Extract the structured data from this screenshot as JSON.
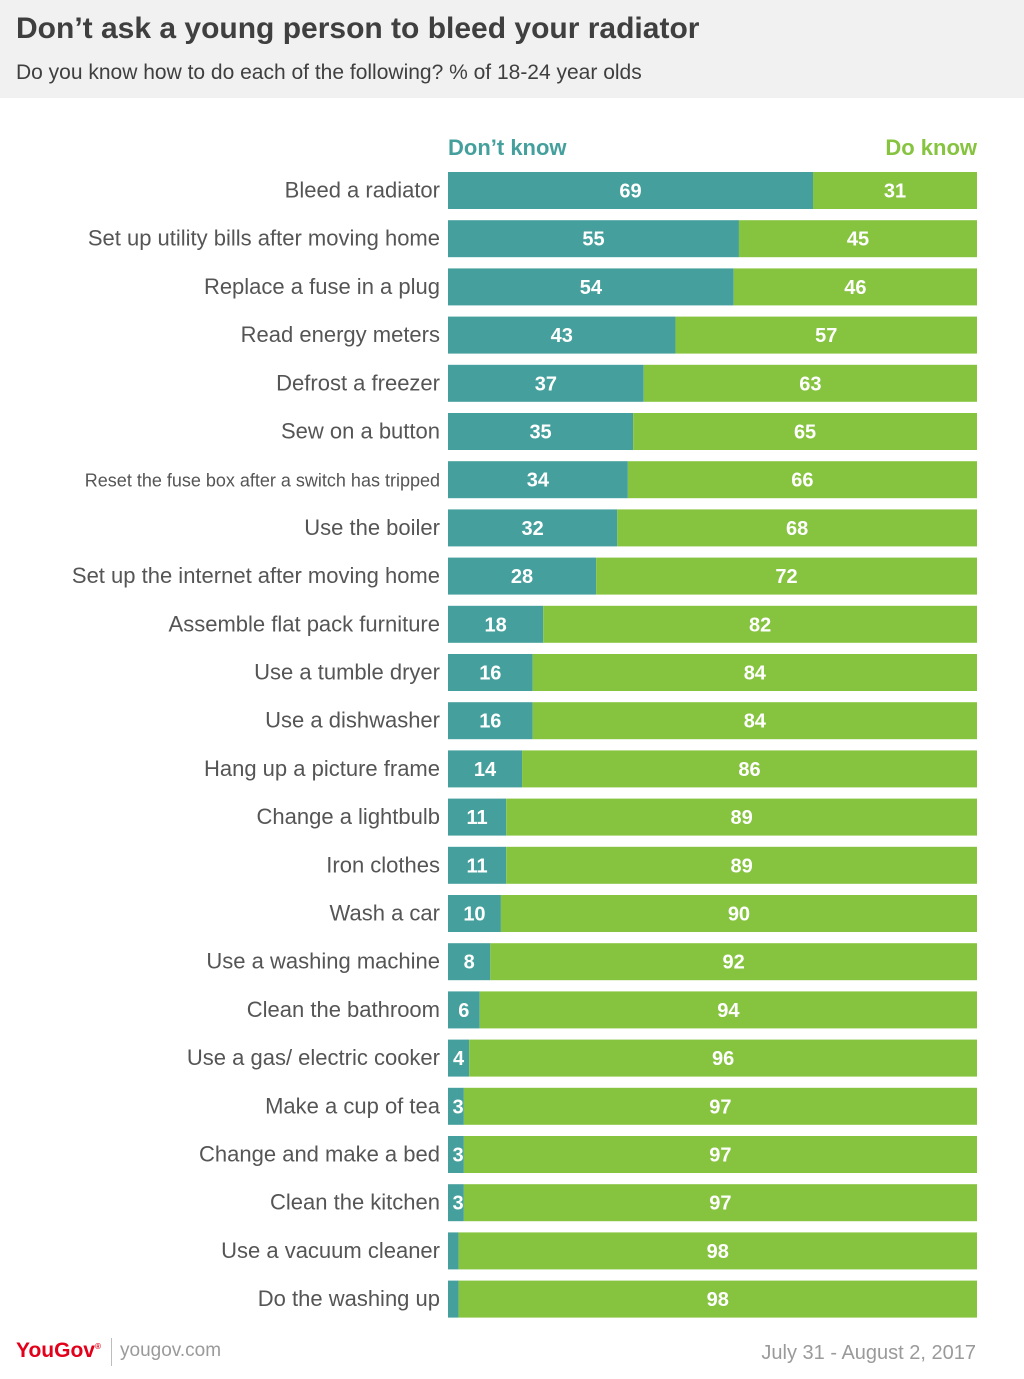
{
  "header": {
    "title": "Don’t ask a young person to bleed your radiator",
    "subtitle": "Do you know how to do each of the following? % of 18-24 year olds"
  },
  "footer": {
    "brand": "YouGov",
    "brand_mark": "®",
    "site": "yougov.com",
    "date": "July 31 - August 2, 2017"
  },
  "colors": {
    "dont_know": "#45a09d",
    "do_know": "#86c440",
    "label": "#555555",
    "brand": "#e2001a"
  },
  "chart_data": {
    "type": "bar",
    "orientation": "horizontal",
    "stacked": true,
    "categories": [
      "Bleed a radiator",
      "Set up utility bills after moving home",
      "Replace a fuse in a plug",
      "Read energy meters",
      "Defrost a freezer",
      "Sew on a button",
      "Reset the fuse box after a switch has tripped",
      "Use the boiler",
      "Set up the internet after moving home",
      "Assemble flat pack furniture",
      "Use a tumble dryer",
      "Use a dishwasher",
      "Hang up a picture frame",
      "Change a lightbulb",
      "Iron clothes",
      "Wash a car",
      "Use a washing machine",
      "Clean the bathroom",
      "Use a gas/ electric cooker",
      "Make a cup of tea",
      "Change and make a bed",
      "Clean the kitchen",
      "Use a vacuum cleaner",
      "Do the washing up"
    ],
    "series": [
      {
        "name": "Don’t know",
        "values": [
          69,
          55,
          54,
          43,
          37,
          35,
          34,
          32,
          28,
          18,
          16,
          16,
          14,
          11,
          11,
          10,
          8,
          6,
          4,
          3,
          3,
          3,
          2,
          2
        ],
        "labels": [
          "69",
          "55",
          "54",
          "43",
          "37",
          "35",
          "34",
          "32",
          "28",
          "18",
          "16",
          "16",
          "14",
          "11",
          "11",
          "10",
          "8",
          "6",
          "4",
          "3",
          "3",
          "3",
          "",
          ""
        ]
      },
      {
        "name": "Do know",
        "values": [
          31,
          45,
          46,
          57,
          63,
          65,
          66,
          68,
          72,
          82,
          84,
          84,
          86,
          89,
          89,
          90,
          92,
          94,
          96,
          97,
          97,
          97,
          98,
          98
        ],
        "labels": [
          "31",
          "45",
          "46",
          "57",
          "63",
          "65",
          "66",
          "68",
          "72",
          "82",
          "84",
          "84",
          "86",
          "89",
          "89",
          "90",
          "92",
          "94",
          "96",
          "97",
          "97",
          "97",
          "98",
          "98"
        ]
      }
    ],
    "xlim": [
      0,
      100
    ],
    "grid": false,
    "legend": "top"
  }
}
